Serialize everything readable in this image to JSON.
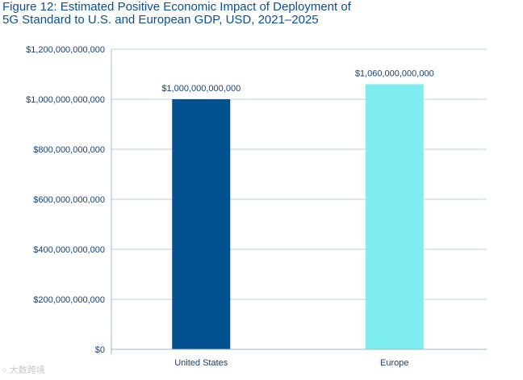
{
  "chart_data": {
    "type": "bar",
    "title_lines": [
      "Figure 12: Estimated Positive Economic Impact of Deployment of",
      "5G Standard to U.S. and European GDP, USD, 2021–2025"
    ],
    "categories": [
      "United States",
      "Europe"
    ],
    "values": [
      1000000000000,
      1060000000000
    ],
    "value_labels": [
      "$1,000,000,000,000",
      "$1,060,000,000,000"
    ],
    "bar_colors": [
      "#02508f",
      "#7eedf0"
    ],
    "ylim": [
      0,
      1200000000000
    ],
    "y_ticks": [
      0,
      200000000000,
      400000000000,
      600000000000,
      800000000000,
      1000000000000,
      1200000000000
    ],
    "y_tick_labels": [
      "$0",
      "$200,000,000,000",
      "$400,000,000,000",
      "$600,000,000,000",
      "$800,000,000,000",
      "$1,000,000,000,000",
      "$1,200,000,000,000"
    ],
    "xlabel": "",
    "ylabel": "",
    "grid": true
  },
  "watermark": "大数跨境"
}
